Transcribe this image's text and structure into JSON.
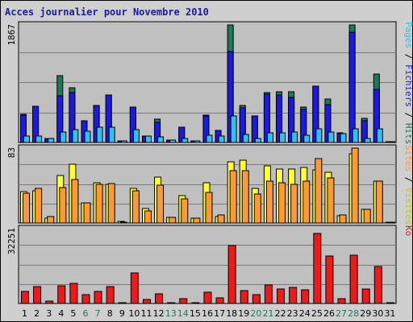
{
  "title": "Acces journalier pour Novembre 2010",
  "colors": {
    "plot_bg": "#c0c0c0",
    "hits": "#1a7a5a",
    "fichiers": "#1a1ae0",
    "pages": "#33c0f0",
    "visites": "#ffff33",
    "sites": "#ff9933",
    "ko": "#ee1a1a",
    "weekday_text": "#000000",
    "weekend_text": "#1a7a5a",
    "title_text": "#1a1aa0"
  },
  "chart_data": [
    {
      "type": "bar",
      "name": "hits-fichiers-pages",
      "ymax_label": "1867",
      "ylim": [
        0,
        1867
      ],
      "categories": [
        "1",
        "2",
        "3",
        "4",
        "5",
        "6",
        "7",
        "8",
        "9",
        "10",
        "11",
        "12",
        "13",
        "14",
        "15",
        "16",
        "17",
        "18",
        "19",
        "20",
        "21",
        "22",
        "23",
        "24",
        "25",
        "26",
        "27",
        "28",
        "29",
        "30",
        "31"
      ],
      "weekend": [
        false,
        false,
        false,
        false,
        false,
        true,
        true,
        false,
        false,
        false,
        false,
        false,
        true,
        true,
        false,
        false,
        false,
        false,
        false,
        true,
        true,
        false,
        false,
        false,
        false,
        false,
        true,
        true,
        false,
        false,
        false
      ],
      "series_labels": [
        "Pages",
        "Fichiers",
        "Hits"
      ],
      "series": [
        {
          "name": "Hits",
          "values": [
            450,
            580,
            60,
            1060,
            870,
            350,
            590,
            760,
            20,
            560,
            100,
            370,
            40,
            240,
            30,
            430,
            190,
            1870,
            590,
            420,
            790,
            800,
            810,
            560,
            900,
            690,
            150,
            1867,
            390,
            1090,
            0
          ]
        },
        {
          "name": "Fichiers",
          "values": [
            440,
            570,
            60,
            740,
            790,
            340,
            590,
            760,
            20,
            560,
            100,
            320,
            40,
            240,
            30,
            420,
            190,
            1450,
            550,
            420,
            770,
            760,
            710,
            530,
            900,
            600,
            140,
            1750,
            350,
            850,
            0
          ]
        },
        {
          "name": "Pages",
          "values": [
            100,
            100,
            60,
            160,
            210,
            180,
            240,
            240,
            20,
            210,
            100,
            90,
            40,
            70,
            30,
            110,
            100,
            420,
            130,
            70,
            150,
            150,
            160,
            110,
            220,
            170,
            140,
            220,
            60,
            220,
            0
          ]
        }
      ]
    },
    {
      "type": "bar",
      "name": "visites-sites",
      "ymax_label": "83",
      "ylim": [
        0,
        83
      ],
      "series_labels": [
        "Sites",
        "Visites"
      ],
      "series": [
        {
          "name": "Visites",
          "values": [
            35,
            36,
            5,
            53,
            65,
            22,
            45,
            43,
            2,
            38,
            16,
            51,
            6,
            30,
            5,
            45,
            7,
            68,
            70,
            38,
            63,
            60,
            60,
            62,
            59,
            56,
            8,
            77,
            15,
            46,
            0
          ]
        },
        {
          "name": "Sites",
          "values": [
            33,
            38,
            7,
            39,
            48,
            22,
            43,
            44,
            1,
            36,
            13,
            42,
            6,
            27,
            5,
            34,
            9,
            58,
            58,
            32,
            46,
            45,
            43,
            46,
            71,
            50,
            9,
            83,
            15,
            46,
            0
          ]
        }
      ]
    },
    {
      "type": "bar",
      "name": "ko",
      "ymax_label": "32251",
      "ylim": [
        0,
        32251
      ],
      "series_labels": [
        "Ko"
      ],
      "series": [
        {
          "name": "Ko",
          "values": [
            5200,
            7200,
            1200,
            7800,
            8800,
            3900,
            5300,
            7200,
            300,
            13200,
            1900,
            4300,
            400,
            2200,
            300,
            4700,
            2300,
            24800,
            5700,
            3700,
            8100,
            6100,
            6900,
            6000,
            30100,
            20400,
            2100,
            20800,
            6100,
            16100,
            0
          ]
        }
      ]
    }
  ]
}
